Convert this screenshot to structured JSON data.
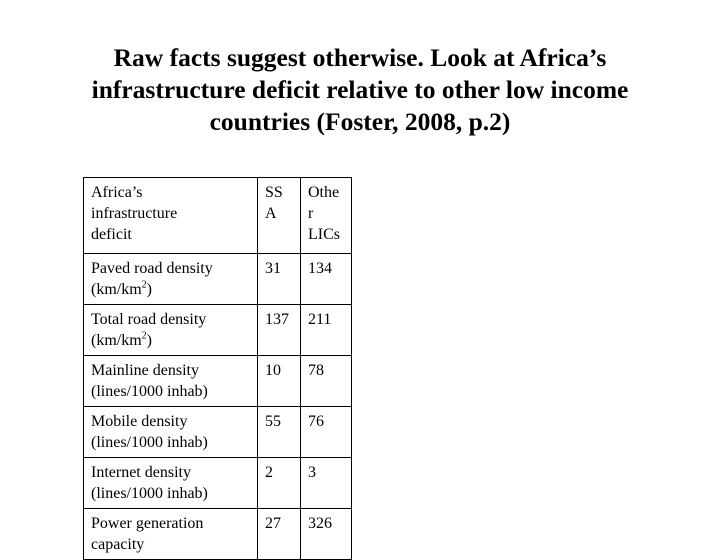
{
  "slide": {
    "title_lines": [
      "Raw facts suggest otherwise. Look at Africa’s",
      "infrastructure deficit relative to other low income",
      "countries (Foster, 2008, p.2)"
    ]
  },
  "table": {
    "header": {
      "label_lines": [
        "Africa’s",
        "infrastructure",
        "deficit"
      ],
      "ssa_lines": [
        "SS",
        "A"
      ],
      "other_lines": [
        "Othe",
        "r",
        "LICs"
      ]
    },
    "rows": [
      {
        "label_line1": "Paved road density",
        "label_line2_pre": "(km/km",
        "label_sup": "2",
        "label_line2_post": ")",
        "ssa": "31",
        "other": "134"
      },
      {
        "label_line1": "Total road density",
        "label_line2_pre": "(km/km",
        "label_sup": "2",
        "label_line2_post": ")",
        "ssa": "137",
        "other": "211"
      },
      {
        "label_line1": "Mainline density",
        "label_line2_pre": "(lines/1000 inhab)",
        "ssa": "10",
        "other": "78"
      },
      {
        "label_line1": "Mobile density",
        "label_line2_pre": "(lines/1000 inhab)",
        "ssa": "55",
        "other": "76"
      },
      {
        "label_line1": "Internet density",
        "label_line2_pre": "(lines/1000 inhab)",
        "ssa": "2",
        "other": "3"
      },
      {
        "label_line1": "Power generation",
        "label_line2_pre": "capacity",
        "ssa": "27",
        "other": "326"
      }
    ]
  }
}
